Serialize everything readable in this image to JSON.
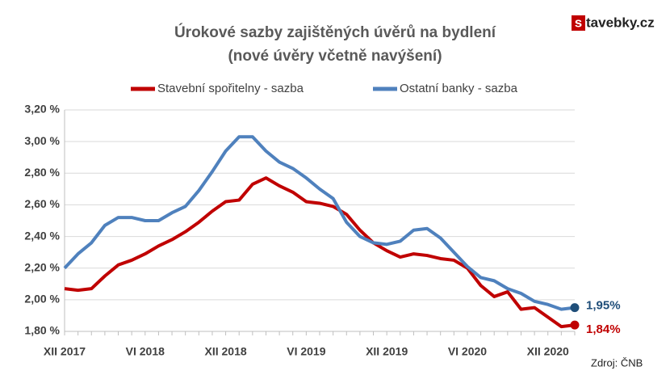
{
  "chart_data": {
    "type": "line",
    "title": "Úrokové sazby zajištěných úvěrů na bydlení",
    "subtitle": "(nové úvěry včetně navýšení)",
    "brand": {
      "mark": "s",
      "text": "tavebky.cz"
    },
    "source": "Zdroj: ČNB",
    "categories": [
      "XII 2017",
      null,
      null,
      null,
      null,
      null,
      "VI 2018",
      null,
      null,
      null,
      null,
      null,
      "XII 2018",
      null,
      null,
      null,
      null,
      null,
      "VI 2019",
      null,
      null,
      null,
      null,
      null,
      "XII 2019",
      null,
      null,
      null,
      null,
      null,
      "VI 2020",
      null,
      null,
      null,
      null,
      null,
      "XII 2020",
      null,
      null
    ],
    "series": [
      {
        "name": "Stavební spořitelny - sazba",
        "color": "#c00000",
        "values": [
          2.07,
          2.06,
          2.07,
          2.15,
          2.22,
          2.25,
          2.29,
          2.34,
          2.38,
          2.43,
          2.49,
          2.56,
          2.62,
          2.63,
          2.73,
          2.77,
          2.72,
          2.68,
          2.62,
          2.61,
          2.59,
          2.54,
          2.44,
          2.36,
          2.31,
          2.27,
          2.29,
          2.28,
          2.26,
          2.25,
          2.2,
          2.09,
          2.02,
          2.05,
          1.94,
          1.95,
          1.89,
          1.83,
          1.84
        ],
        "value_labels": [
          null,
          null,
          null,
          null,
          null,
          null,
          null,
          null,
          null,
          null,
          null,
          null,
          null,
          null,
          null,
          null,
          null,
          null,
          null,
          null,
          null,
          null,
          null,
          null,
          null,
          null,
          null,
          null,
          null,
          null,
          null,
          null,
          null,
          null,
          null,
          null,
          null,
          null,
          "1,84%"
        ]
      },
      {
        "name": "Ostatní banky - sazba",
        "color": "#4f81bd",
        "values": [
          2.2,
          2.29,
          2.36,
          2.47,
          2.52,
          2.52,
          2.5,
          2.5,
          2.55,
          2.59,
          2.69,
          2.81,
          2.94,
          3.03,
          3.03,
          2.94,
          2.87,
          2.83,
          2.77,
          2.7,
          2.64,
          2.49,
          2.4,
          2.36,
          2.35,
          2.37,
          2.44,
          2.45,
          2.39,
          2.3,
          2.21,
          2.14,
          2.12,
          2.07,
          2.04,
          1.99,
          1.97,
          1.94,
          1.95
        ],
        "value_labels": [
          null,
          null,
          null,
          null,
          null,
          null,
          null,
          null,
          null,
          null,
          null,
          null,
          null,
          null,
          null,
          null,
          null,
          null,
          null,
          null,
          null,
          null,
          null,
          null,
          null,
          null,
          null,
          null,
          null,
          null,
          null,
          null,
          null,
          null,
          null,
          null,
          null,
          null,
          "1,95%"
        ]
      }
    ],
    "label_colors": [
      "#c00000",
      "#1f4e79"
    ],
    "ylim": [
      1.8,
      3.2
    ],
    "yticks": [
      {
        "value": 1.8,
        "label": "1,80 %"
      },
      {
        "value": 2.0,
        "label": "2,00 %"
      },
      {
        "value": 2.2,
        "label": "2,20 %"
      },
      {
        "value": 2.4,
        "label": "2,40 %"
      },
      {
        "value": 2.6,
        "label": "2,60 %"
      },
      {
        "value": 2.8,
        "label": "2,80 %"
      },
      {
        "value": 3.0,
        "label": "3,00 %"
      },
      {
        "value": 3.2,
        "label": "3,20 %"
      }
    ],
    "grid": true
  }
}
